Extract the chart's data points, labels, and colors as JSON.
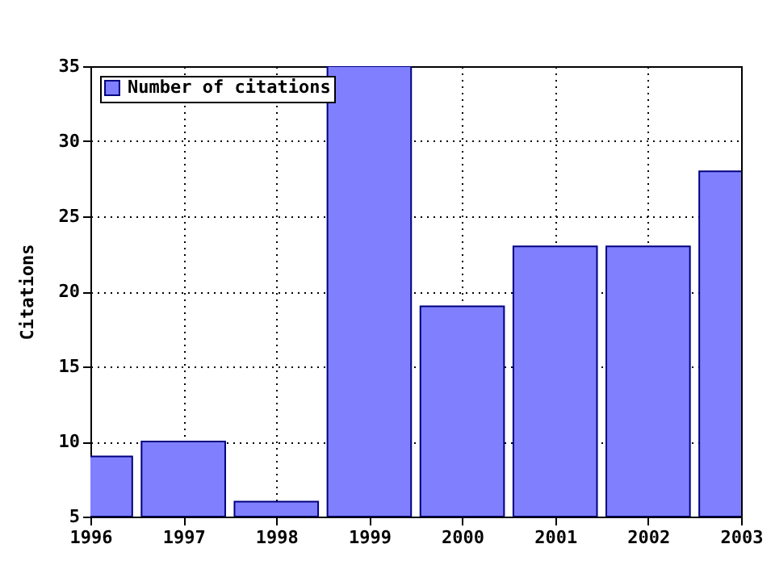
{
  "chart_data": {
    "type": "bar",
    "ylabel": "Citations",
    "x": [
      1996,
      1997,
      1998,
      1999,
      2000,
      2001,
      2002,
      2003
    ],
    "series": [
      {
        "name": "Number of citations",
        "color": "#8080ff",
        "values": [
          9,
          10,
          6,
          35,
          19,
          23,
          23,
          28
        ]
      }
    ],
    "xlim": [
      1996,
      2003
    ],
    "xticks": [
      1996,
      1997,
      1998,
      1999,
      2000,
      2001,
      2002,
      2003
    ],
    "ylim": [
      5,
      35
    ],
    "yticks": [
      5,
      10,
      15,
      20,
      25,
      30,
      35
    ],
    "grid": true,
    "legend": "top left"
  }
}
